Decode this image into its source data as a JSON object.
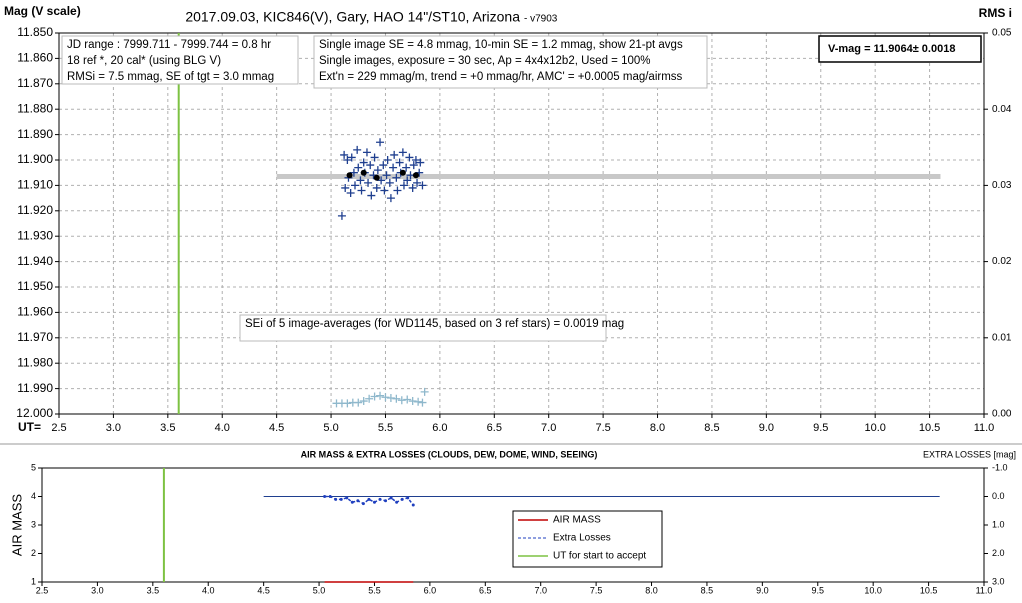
{
  "chart_data": [
    {
      "type": "scatter",
      "title": "2017.09.03,  KIC846(V),  Gary,  HAO  14\"/ST10, Arizona",
      "subtitle": "- v7903",
      "y_label": "Mag (V scale)",
      "y2_label": "RMS i",
      "x_label": "UT=",
      "notes": [
        [
          "JD range : 7999.711 - 7999.744 =  0.8  hr",
          "18 ref *, 20 cal* (using BLG V)",
          "RMSi = 7.5 mmag, SE of tgt = 3.0 mmag"
        ],
        [
          "Single image SE = 4.8 mmag, 10-min SE = 1.2 mmag, show 21-pt avgs",
          "Single images, exposure = 30 sec, Ap = 4x4x12b2, Used = 100%",
          "Ext'n = 229 mmag/m, trend = +0 mmag/hr, AMC' = +0.0005 mag/airmss"
        ],
        [
          "V-mag = 11.9064± 0.0018"
        ],
        [
          "SEi of 5 image-averages (for WD1145, based on 3 ref stars) = 0.0019 mag"
        ]
      ],
      "xlim": [
        2.5,
        11.0
      ],
      "xticks": [
        2.5,
        {
          "value": 3,
          "label": "3.0"
        },
        3.5,
        {
          "value": 4,
          "label": "4.0"
        },
        4.5,
        {
          "value": 5,
          "label": "5.0"
        },
        5.5,
        {
          "value": 6,
          "label": "6.0"
        },
        6.5,
        {
          "value": 7,
          "label": "7.0"
        },
        7.5,
        {
          "value": 8,
          "label": "8.0"
        },
        8.5,
        {
          "value": 9,
          "label": "9.0"
        },
        9.5,
        {
          "value": 10,
          "label": "10.0"
        },
        10.5,
        {
          "value": 11,
          "label": "11.0"
        }
      ],
      "ylim": [
        12.0,
        11.85
      ],
      "yticks": [
        {
          "value": 11.85,
          "label": "11.850"
        },
        {
          "value": 11.86,
          "label": "11.860"
        },
        {
          "value": 11.87,
          "label": "11.870"
        },
        {
          "value": 11.88,
          "label": "11.880"
        },
        {
          "value": 11.89,
          "label": "11.890"
        },
        {
          "value": 11.9,
          "label": "11.900"
        },
        {
          "value": 11.91,
          "label": "11.910"
        },
        {
          "value": 11.92,
          "label": "11.920"
        },
        {
          "value": 11.93,
          "label": "11.930"
        },
        {
          "value": 11.94,
          "label": "11.940"
        },
        {
          "value": 11.95,
          "label": "11.950"
        },
        {
          "value": 11.96,
          "label": "11.960"
        },
        {
          "value": 11.97,
          "label": "11.970"
        },
        {
          "value": 11.98,
          "label": "11.980"
        },
        {
          "value": 11.99,
          "label": "11.990"
        },
        {
          "value": 12,
          "label": "12.000"
        }
      ],
      "y2lim": [
        0,
        0.05
      ],
      "y2ticks": [
        0.05,
        0.04,
        0.03,
        0.02,
        0.01,
        {
          "value": 0,
          "label": "0.00"
        }
      ],
      "grid": true,
      "vline": {
        "x": 3.6,
        "color": "#7dc242"
      },
      "series": [
        {
          "marker": "line",
          "color": "#c8c8c8",
          "x": [
            4.5,
            10.6
          ],
          "values": [
            11.9065,
            11.9065
          ]
        },
        {
          "marker": "plus",
          "color": "#1f3f8f",
          "x": [
            5.1,
            5.12,
            5.13,
            5.15,
            5.16,
            5.18,
            5.19,
            5.21,
            5.22,
            5.24,
            5.25,
            5.27,
            5.28,
            5.3,
            5.31,
            5.33,
            5.34,
            5.36,
            5.37,
            5.39,
            5.4,
            5.42,
            5.43,
            5.45,
            5.46,
            5.48,
            5.49,
            5.51,
            5.52,
            5.54,
            5.55,
            5.57,
            5.58,
            5.6,
            5.61,
            5.63,
            5.64,
            5.66,
            5.67,
            5.69,
            5.7,
            5.72,
            5.73,
            5.75,
            5.76,
            5.78,
            5.79,
            5.81,
            5.82,
            5.84
          ],
          "values": [
            11.922,
            11.898,
            11.911,
            11.9,
            11.907,
            11.913,
            11.899,
            11.905,
            11.91,
            11.896,
            11.903,
            11.908,
            11.912,
            11.901,
            11.905,
            11.897,
            11.909,
            11.902,
            11.914,
            11.906,
            11.899,
            11.911,
            11.904,
            11.893,
            11.908,
            11.902,
            11.912,
            11.906,
            11.9,
            11.909,
            11.915,
            11.903,
            11.898,
            11.907,
            11.912,
            11.901,
            11.905,
            11.897,
            11.91,
            11.903,
            11.908,
            11.899,
            11.906,
            11.911,
            11.902,
            11.9,
            11.909,
            11.905,
            11.901,
            11.91
          ]
        },
        {
          "marker": "dot",
          "color": "#000000",
          "x": [
            5.17,
            5.3,
            5.42,
            5.66,
            5.78
          ],
          "values": [
            11.906,
            11.905,
            11.907,
            11.905,
            11.906
          ]
        },
        {
          "marker": "plus",
          "color": "#8fb8cc",
          "axis": "y2",
          "x": [
            5.05,
            5.1,
            5.15,
            5.2,
            5.25,
            5.3,
            5.35,
            5.4,
            5.45,
            5.5,
            5.55,
            5.6,
            5.65,
            5.7,
            5.75,
            5.8,
            5.84,
            5.86
          ],
          "values": [
            0.0014,
            0.0014,
            0.0014,
            0.0015,
            0.0015,
            0.0017,
            0.002,
            0.0023,
            0.0024,
            0.0022,
            0.0021,
            0.002,
            0.0018,
            0.0019,
            0.0017,
            0.0016,
            0.0015,
            0.0029
          ]
        }
      ]
    },
    {
      "type": "line",
      "title": "AIR MASS & EXTRA LOSSES (CLOUDS, DEW, DOME, WIND, SEEING)",
      "y_label": "AIR MASS",
      "y2_label": "EXTRA LOSSES [mag]",
      "xlim": [
        2.5,
        11.0
      ],
      "xticks": [
        2.5,
        {
          "value": 3,
          "label": "3.0"
        },
        3.5,
        {
          "value": 4,
          "label": "4.0"
        },
        4.5,
        {
          "value": 5,
          "label": "5.0"
        },
        5.5,
        {
          "value": 6,
          "label": "6.0"
        },
        6.5,
        {
          "value": 7,
          "label": "7.0"
        },
        7.5,
        {
          "value": 8,
          "label": "8.0"
        },
        8.5,
        {
          "value": 9,
          "label": "9.0"
        },
        9.5,
        {
          "value": 10,
          "label": "10.0"
        },
        10.5,
        {
          "value": 11,
          "label": "11.0"
        }
      ],
      "ylim": [
        1,
        5
      ],
      "yticks": [
        1,
        2,
        3,
        4,
        5
      ],
      "y2lim": [
        3.0,
        -1.0
      ],
      "y2ticks": [
        {
          "value": -1,
          "label": "-1.0"
        },
        {
          "value": 0,
          "label": "0.0"
        },
        {
          "value": 1,
          "label": "1.0"
        },
        {
          "value": 2,
          "label": "2.0"
        },
        {
          "value": 3,
          "label": "3.0"
        }
      ],
      "grid": false,
      "zero_line": {
        "color": "#1f3f8f",
        "axis": "y2",
        "x": [
          4.5,
          10.6
        ],
        "values": [
          0,
          0
        ]
      },
      "series": [
        {
          "name": "AIR MASS",
          "color": "#c00000",
          "x": [
            5.05,
            5.85
          ],
          "values": [
            1.0,
            1.0
          ]
        },
        {
          "name": "Extra Losses",
          "color": "#1f3fbf",
          "axis": "y2",
          "dashed": true,
          "x": [
            5.05,
            5.1,
            5.15,
            5.2,
            5.25,
            5.3,
            5.35,
            5.4,
            5.45,
            5.5,
            5.55,
            5.6,
            5.65,
            5.7,
            5.75,
            5.8,
            5.85
          ],
          "values": [
            0.0,
            0.0,
            0.1,
            0.1,
            0.05,
            0.2,
            0.15,
            0.25,
            0.1,
            0.2,
            0.1,
            0.15,
            0.05,
            0.2,
            0.1,
            0.05,
            0.3
          ]
        }
      ],
      "vline": {
        "name": "UT for start to accept",
        "x": 3.6,
        "color": "#7dc242"
      },
      "legend": "lower-center"
    }
  ]
}
